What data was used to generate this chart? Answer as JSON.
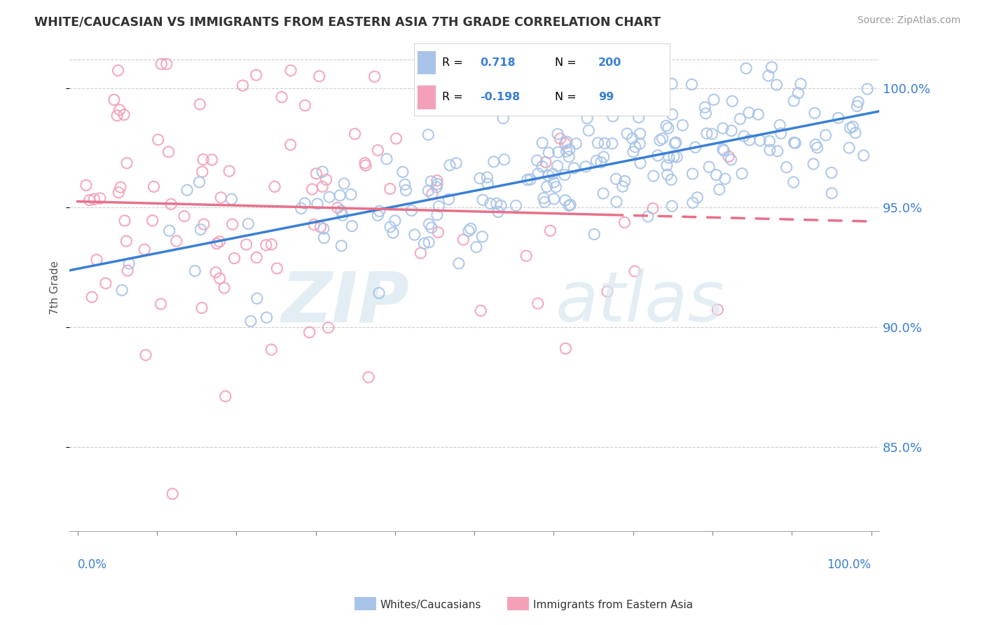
{
  "title": "WHITE/CAUCASIAN VS IMMIGRANTS FROM EASTERN ASIA 7TH GRADE CORRELATION CHART",
  "source_text": "Source: ZipAtlas.com",
  "ylabel": "7th Grade",
  "yaxis_ticks": [
    85.0,
    90.0,
    95.0,
    100.0
  ],
  "ylim": [
    81.5,
    101.8
  ],
  "xlim": [
    -0.01,
    1.01
  ],
  "blue_R": 0.718,
  "blue_N": 200,
  "pink_R": -0.198,
  "pink_N": 99,
  "blue_color": "#a8c4e8",
  "pink_color": "#f4a0b8",
  "blue_line_color": "#3a7fd5",
  "pink_line_color": "#e8708a",
  "blue_label": "Whites/Caucasians",
  "pink_label": "Immigrants from Eastern Asia",
  "legend_value_color": "#3a7fd5",
  "background_color": "#ffffff",
  "title_color": "#333333",
  "yaxis_tick_color": "#3a7fd5",
  "seed_blue": 77,
  "seed_pink": 55
}
